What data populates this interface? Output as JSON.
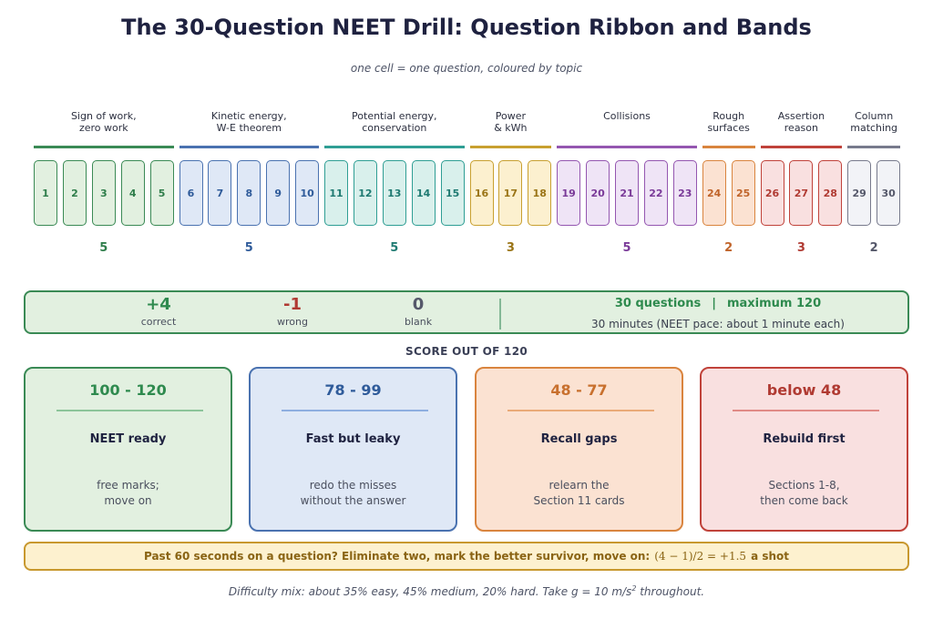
{
  "header": {
    "title": "The 30-Question NEET Drill: Question Ribbon and Bands",
    "subtitle": "one cell = one question, coloured by topic"
  },
  "topics": [
    {
      "label": "Sign of work,\nzero work",
      "count": "5",
      "questions": [
        "1",
        "2",
        "3",
        "4",
        "5"
      ],
      "border": "#3a8a55",
      "fill": "#e2f0e0",
      "text": "#2e7d4a"
    },
    {
      "label": "Kinetic energy,\nW-E theorem",
      "count": "5",
      "questions": [
        "6",
        "7",
        "8",
        "9",
        "10"
      ],
      "border": "#4a72b0",
      "fill": "#dfe8f6",
      "text": "#2f5b9a"
    },
    {
      "label": "Potential energy,\nconservation",
      "count": "5",
      "questions": [
        "11",
        "12",
        "13",
        "14",
        "15"
      ],
      "border": "#2f9e94",
      "fill": "#d9f0ec",
      "text": "#1f7a72"
    },
    {
      "label": "Power\n& kWh",
      "count": "3",
      "questions": [
        "16",
        "17",
        "18"
      ],
      "border": "#c8a030",
      "fill": "#fcf0cf",
      "text": "#9a7416"
    },
    {
      "label": "Collisions",
      "count": "5",
      "questions": [
        "19",
        "20",
        "21",
        "22",
        "23"
      ],
      "border": "#9456b0",
      "fill": "#efe4f6",
      "text": "#7a3a98"
    },
    {
      "label": "Rough\nsurfaces",
      "count": "2",
      "questions": [
        "24",
        "25"
      ],
      "border": "#d9843e",
      "fill": "#fbe2d2",
      "text": "#c0642a"
    },
    {
      "label": "Assertion\nreason",
      "count": "3",
      "questions": [
        "26",
        "27",
        "28"
      ],
      "border": "#c0423a",
      "fill": "#f9e0e0",
      "text": "#b03a32"
    },
    {
      "label": "Column\nmatching",
      "count": "2",
      "questions": [
        "29",
        "30"
      ],
      "border": "#777a8c",
      "fill": "#f2f3f7",
      "text": "#55586a"
    }
  ],
  "scoring": {
    "marks": [
      {
        "value": "+4",
        "label": "correct",
        "color": "#2e8a4e"
      },
      {
        "value": "-1",
        "label": "wrong",
        "color": "#b03a32"
      },
      {
        "value": "0",
        "label": "blank",
        "color": "#55586a"
      }
    ],
    "questions_text": "30 questions",
    "separator": "|",
    "maximum_text": "maximum 120",
    "pace_text": "30 minutes  (NEET pace: about 1 minute each)"
  },
  "bands_caption": "SCORE OUT OF 120",
  "bands": [
    {
      "range": "100 - 120",
      "name": "NEET ready",
      "desc": "free marks;\nmove on",
      "border": "#3a8a55",
      "fill": "#e2f0e0",
      "accent": "#2e8a4e",
      "rule": "#8cc49a"
    },
    {
      "range": "78 - 99",
      "name": "Fast but leaky",
      "desc": "redo the misses\nwithout the answer",
      "border": "#4a72b0",
      "fill": "#dfe8f6",
      "accent": "#2f5b9a",
      "rule": "#8eaee0"
    },
    {
      "range": "48 - 77",
      "name": "Recall gaps",
      "desc": "relearn the\nSection 11 cards",
      "border": "#d9843e",
      "fill": "#fbe2d2",
      "accent": "#c8702e",
      "rule": "#eaaa78"
    },
    {
      "range": "below 48",
      "name": "Rebuild first",
      "desc": "Sections 1-8,\nthen come back",
      "border": "#c0423a",
      "fill": "#f9e0e0",
      "accent": "#b03a32",
      "rule": "#e08a86"
    }
  ],
  "tip": {
    "lead": "Past 60 seconds on a question?  Eliminate two, mark the better survivor, move on:",
    "formula": "(4 − 1)/2 = +1.5",
    "tail": "a shot"
  },
  "footnote": {
    "text": "Difficulty mix: about 35% easy, 45% medium, 20% hard. Take g = 10 m/s",
    "superscript": "2",
    "tail": " throughout."
  }
}
